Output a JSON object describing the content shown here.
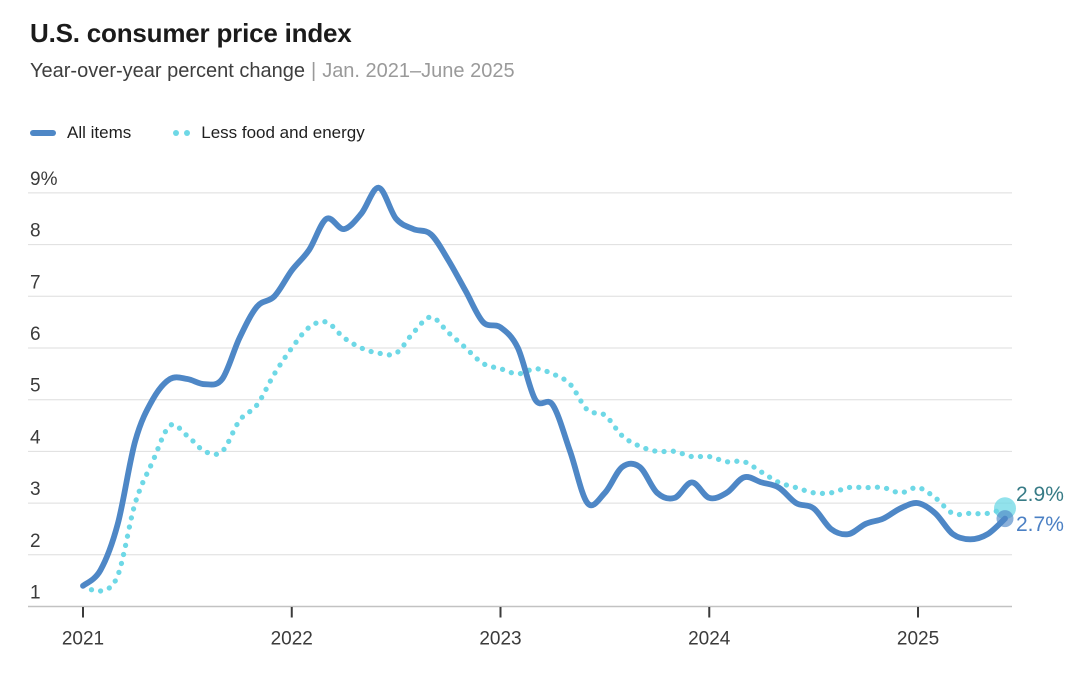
{
  "header": {
    "title": "U.S. consumer price index",
    "subtitle": "Year-over-year percent change",
    "separator": "|",
    "date_range": "Jan. 2021–June 2025"
  },
  "legend": {
    "items": [
      {
        "label": "All items"
      },
      {
        "label": "Less food and energy"
      }
    ]
  },
  "chart_data": {
    "type": "line",
    "title": "U.S. consumer price index",
    "ylabel": "Year-over-year percent change",
    "x_start": "Jan. 2021",
    "x_end": "June 2025",
    "x_frequency": "monthly",
    "ylim": [
      1,
      9
    ],
    "grid": "horizontal",
    "legend_position": "top-left",
    "x_ticks": [
      {
        "label": "2021",
        "month": 0
      },
      {
        "label": "2022",
        "month": 12
      },
      {
        "label": "2023",
        "month": 24
      },
      {
        "label": "2024",
        "month": 36
      },
      {
        "label": "2025",
        "month": 48
      }
    ],
    "y_ticks": [
      {
        "value": 1,
        "label": "1"
      },
      {
        "value": 2,
        "label": "2"
      },
      {
        "value": 3,
        "label": "3"
      },
      {
        "value": 4,
        "label": "4"
      },
      {
        "value": 5,
        "label": "5"
      },
      {
        "value": 6,
        "label": "6"
      },
      {
        "value": 7,
        "label": "7"
      },
      {
        "value": 8,
        "label": "8"
      },
      {
        "value": 9,
        "label": "9%"
      }
    ],
    "series": [
      {
        "name": "All items",
        "style": "solid",
        "color": "#4E87C6",
        "end_label": "2.7%",
        "end_label_color": "#4B80C4",
        "values": [
          1.4,
          1.7,
          2.6,
          4.2,
          5.0,
          5.4,
          5.4,
          5.3,
          5.4,
          6.2,
          6.8,
          7.0,
          7.5,
          7.9,
          8.5,
          8.3,
          8.6,
          9.1,
          8.5,
          8.3,
          8.2,
          7.7,
          7.1,
          6.5,
          6.4,
          6.0,
          5.0,
          4.9,
          4.0,
          3.0,
          3.2,
          3.7,
          3.7,
          3.2,
          3.1,
          3.4,
          3.1,
          3.2,
          3.5,
          3.4,
          3.3,
          3.0,
          2.9,
          2.5,
          2.4,
          2.6,
          2.7,
          2.9,
          3.0,
          2.8,
          2.4,
          2.3,
          2.4,
          2.7
        ]
      },
      {
        "name": "Less food and energy",
        "style": "dotted",
        "color": "#6ED8E6",
        "end_label": "2.9%",
        "end_label_color": "#377B86",
        "values": [
          1.4,
          1.3,
          1.6,
          3.0,
          3.8,
          4.5,
          4.3,
          4.0,
          4.0,
          4.6,
          4.9,
          5.5,
          6.0,
          6.4,
          6.5,
          6.2,
          6.0,
          5.9,
          5.9,
          6.3,
          6.6,
          6.3,
          6.0,
          5.7,
          5.6,
          5.5,
          5.6,
          5.5,
          5.3,
          4.8,
          4.7,
          4.3,
          4.1,
          4.0,
          4.0,
          3.9,
          3.9,
          3.8,
          3.8,
          3.6,
          3.4,
          3.3,
          3.2,
          3.2,
          3.3,
          3.3,
          3.3,
          3.2,
          3.3,
          3.1,
          2.8,
          2.8,
          2.8,
          2.9
        ]
      }
    ]
  }
}
